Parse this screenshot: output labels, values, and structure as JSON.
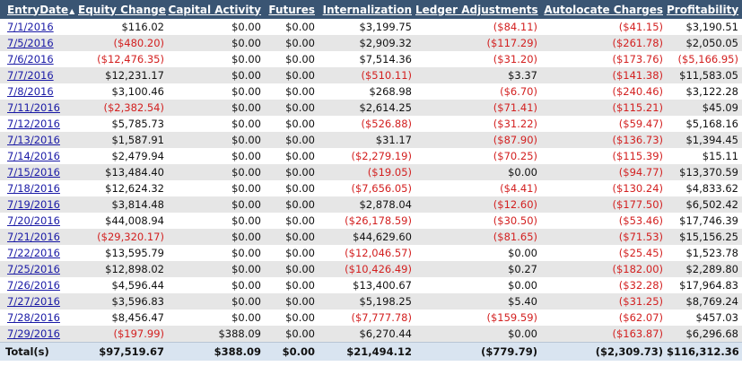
{
  "columns": [
    {
      "key": "entry_date",
      "label": "EntryDate",
      "sort_arrow": "▲"
    },
    {
      "key": "equity_change",
      "label": "Equity Change"
    },
    {
      "key": "capital_activity",
      "label": "Capital Activity"
    },
    {
      "key": "futures",
      "label": "Futures"
    },
    {
      "key": "internalization",
      "label": "Internalization"
    },
    {
      "key": "ledger_adjustments",
      "label": "Ledger Adjustments"
    },
    {
      "key": "autolocate_charges",
      "label": "Autolocate Charges"
    },
    {
      "key": "profitability",
      "label": "Profitability"
    }
  ],
  "rows": [
    [
      "7/1/2016",
      "$116.02",
      "$0.00",
      "$0.00",
      "$3,199.75",
      "($84.11)",
      "($41.15)",
      "$3,190.51"
    ],
    [
      "7/5/2016",
      "($480.20)",
      "$0.00",
      "$0.00",
      "$2,909.32",
      "($117.29)",
      "($261.78)",
      "$2,050.05"
    ],
    [
      "7/6/2016",
      "($12,476.35)",
      "$0.00",
      "$0.00",
      "$7,514.36",
      "($31.20)",
      "($173.76)",
      "($5,166.95)"
    ],
    [
      "7/7/2016",
      "$12,231.17",
      "$0.00",
      "$0.00",
      "($510.11)",
      "$3.37",
      "($141.38)",
      "$11,583.05"
    ],
    [
      "7/8/2016",
      "$3,100.46",
      "$0.00",
      "$0.00",
      "$268.98",
      "($6.70)",
      "($240.46)",
      "$3,122.28"
    ],
    [
      "7/11/2016",
      "($2,382.54)",
      "$0.00",
      "$0.00",
      "$2,614.25",
      "($71.41)",
      "($115.21)",
      "$45.09"
    ],
    [
      "7/12/2016",
      "$5,785.73",
      "$0.00",
      "$0.00",
      "($526.88)",
      "($31.22)",
      "($59.47)",
      "$5,168.16"
    ],
    [
      "7/13/2016",
      "$1,587.91",
      "$0.00",
      "$0.00",
      "$31.17",
      "($87.90)",
      "($136.73)",
      "$1,394.45"
    ],
    [
      "7/14/2016",
      "$2,479.94",
      "$0.00",
      "$0.00",
      "($2,279.19)",
      "($70.25)",
      "($115.39)",
      "$15.11"
    ],
    [
      "7/15/2016",
      "$13,484.40",
      "$0.00",
      "$0.00",
      "($19.05)",
      "$0.00",
      "($94.77)",
      "$13,370.59"
    ],
    [
      "7/18/2016",
      "$12,624.32",
      "$0.00",
      "$0.00",
      "($7,656.05)",
      "($4.41)",
      "($130.24)",
      "$4,833.62"
    ],
    [
      "7/19/2016",
      "$3,814.48",
      "$0.00",
      "$0.00",
      "$2,878.04",
      "($12.60)",
      "($177.50)",
      "$6,502.42"
    ],
    [
      "7/20/2016",
      "$44,008.94",
      "$0.00",
      "$0.00",
      "($26,178.59)",
      "($30.50)",
      "($53.46)",
      "$17,746.39"
    ],
    [
      "7/21/2016",
      "($29,320.17)",
      "$0.00",
      "$0.00",
      "$44,629.60",
      "($81.65)",
      "($71.53)",
      "$15,156.25"
    ],
    [
      "7/22/2016",
      "$13,595.79",
      "$0.00",
      "$0.00",
      "($12,046.57)",
      "$0.00",
      "($25.45)",
      "$1,523.78"
    ],
    [
      "7/25/2016",
      "$12,898.02",
      "$0.00",
      "$0.00",
      "($10,426.49)",
      "$0.27",
      "($182.00)",
      "$2,289.80"
    ],
    [
      "7/26/2016",
      "$4,596.44",
      "$0.00",
      "$0.00",
      "$13,400.67",
      "$0.00",
      "($32.28)",
      "$17,964.83"
    ],
    [
      "7/27/2016",
      "$3,596.83",
      "$0.00",
      "$0.00",
      "$5,198.25",
      "$5.40",
      "($31.25)",
      "$8,769.24"
    ],
    [
      "7/28/2016",
      "$8,456.47",
      "$0.00",
      "$0.00",
      "($7,777.78)",
      "($159.59)",
      "($62.07)",
      "$457.03"
    ],
    [
      "7/29/2016",
      "($197.99)",
      "$388.09",
      "$0.00",
      "$6,270.44",
      "$0.00",
      "($163.87)",
      "$6,296.68"
    ]
  ],
  "totals": [
    "Total(s)",
    "$97,519.67",
    "$388.09",
    "$0.00",
    "$21,494.12",
    "($779.79)",
    "($2,309.73)",
    "$116,312.36"
  ],
  "colors": {
    "header_bg": "#3a5573",
    "negative": "#d32020",
    "link": "#1a1aa6",
    "row_alt": "#e6e6e6",
    "totals_bg": "#d9e4f0"
  }
}
